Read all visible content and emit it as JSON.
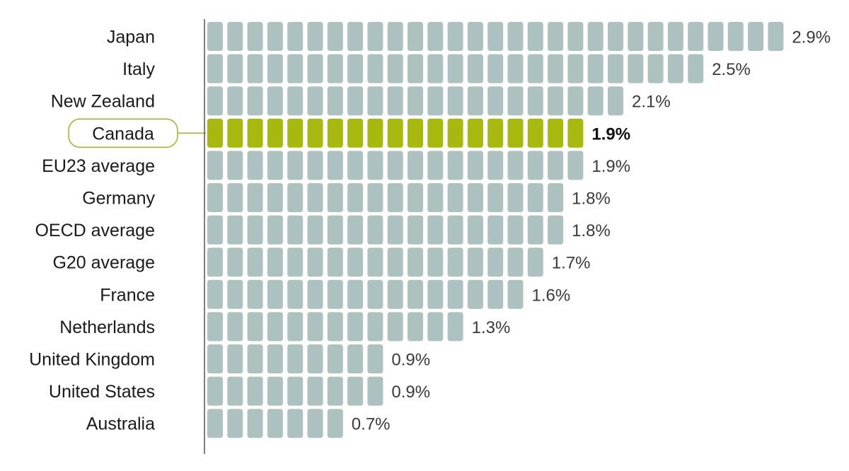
{
  "chart_data": {
    "type": "bar",
    "style": "pictogram",
    "orientation": "horizontal",
    "unit_value": 0.1,
    "categories": [
      "Japan",
      "Italy",
      "New Zealand",
      "Canada",
      "EU23 average",
      "Germany",
      "OECD average",
      "G20 average",
      "France",
      "Netherlands",
      "United Kingdom",
      "United States",
      "Australia"
    ],
    "values": [
      2.9,
      2.5,
      2.1,
      1.9,
      1.9,
      1.8,
      1.8,
      1.7,
      1.6,
      1.3,
      0.9,
      0.9,
      0.7
    ],
    "value_labels": [
      "2.9%",
      "2.5%",
      "2.1%",
      "1.9%",
      "1.9%",
      "1.8%",
      "1.8%",
      "1.7%",
      "1.6%",
      "1.3%",
      "0.9%",
      "0.9%",
      "0.7%"
    ],
    "highlight": "Canada",
    "title": "",
    "xlabel": "",
    "ylabel": "",
    "grid": false,
    "legend": "none"
  },
  "colors": {
    "block": "#acc1c0",
    "highlight": "#a7b80f",
    "highlight_border": "#9fb31e",
    "axis": "#555555"
  }
}
